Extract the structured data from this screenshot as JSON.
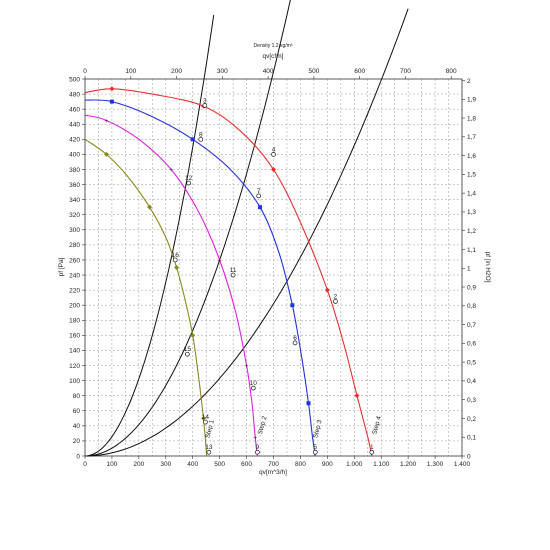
{
  "chart_data": {
    "type": "line",
    "title": "Density 1.2 kg/m³",
    "xlabel": "qv[m^3/h]",
    "x2label": "qv[cfm]",
    "ylabel": "pf [Pa]",
    "y2label": "pf [in H2O]",
    "xlim": [
      0,
      1400
    ],
    "ylim": [
      0,
      500
    ],
    "x2lim": [
      0,
      823.5
    ],
    "y2lim": [
      0,
      2.008
    ],
    "x_ticks": [
      0,
      100,
      200,
      300,
      400,
      500,
      600,
      700,
      800,
      900,
      1000,
      1100,
      1200,
      1300,
      1400
    ],
    "x_tick_labels": [
      "0",
      "100",
      "200",
      "300",
      "400",
      "500",
      "600",
      "700",
      "800",
      "900",
      "1.000",
      "1.100",
      "1.200",
      "1.300",
      "1.400"
    ],
    "x2_ticks": [
      0,
      100,
      200,
      300,
      400,
      500,
      600,
      700,
      800
    ],
    "y_ticks": [
      0,
      20,
      40,
      60,
      80,
      100,
      120,
      140,
      160,
      180,
      200,
      220,
      240,
      260,
      280,
      300,
      320,
      340,
      360,
      380,
      400,
      420,
      440,
      460,
      480,
      500
    ],
    "y2_ticks": [
      0,
      0.1,
      0.2,
      0.3,
      0.4,
      0.5,
      0.6,
      0.7,
      0.8,
      0.9,
      1,
      1.1,
      1.2,
      1.3,
      1.4,
      1.5,
      1.6,
      1.7,
      1.8,
      1.9,
      2
    ],
    "y2_tick_labels": [
      "0",
      "0,1",
      "0,2",
      "0,3",
      "0,4",
      "0,5",
      "0,6",
      "0,7",
      "0,8",
      "0,9",
      "1",
      "1,1",
      "1,2",
      "1,3",
      "1,4",
      "1,5",
      "1,6",
      "1,7",
      "1,8",
      "1,9",
      "2"
    ],
    "grid": true,
    "series": [
      {
        "name": "Step 4",
        "color": "#e83030",
        "marker": "diamond",
        "label_at": [
          1090,
          40
        ],
        "x": [
          0,
          100,
          250,
          440,
          580,
          700,
          800,
          900,
          960,
          1010,
          1050,
          1065
        ],
        "y": [
          482,
          487,
          480,
          464,
          430,
          380,
          310,
          220,
          150,
          80,
          25,
          0
        ]
      },
      {
        "name": "Step 3",
        "color": "#2233dd",
        "marker": "square",
        "label_at": [
          870,
          35
        ],
        "x": [
          0,
          100,
          250,
          400,
          540,
          650,
          720,
          770,
          805,
          830,
          845,
          855
        ],
        "y": [
          472,
          470,
          450,
          420,
          380,
          330,
          270,
          200,
          130,
          70,
          25,
          0
        ]
      },
      {
        "name": "Step 2",
        "color": "#e020e0",
        "marker": "star",
        "label_at": [
          665,
          40
        ],
        "x": [
          0,
          80,
          200,
          320,
          420,
          500,
          560,
          600,
          620,
          632,
          640
        ],
        "y": [
          452,
          445,
          420,
          380,
          325,
          260,
          190,
          120,
          70,
          25,
          0
        ]
      },
      {
        "name": "Step 1",
        "color": "#8a8a20",
        "marker": "diamond",
        "label_at": [
          470,
          35
        ],
        "x": [
          0,
          80,
          160,
          240,
          300,
          340,
          370,
          400,
          420,
          440,
          452
        ],
        "y": [
          420,
          400,
          370,
          330,
          290,
          250,
          210,
          160,
          110,
          50,
          0
        ]
      }
    ],
    "system_curves": [
      {
        "k": 0.00256,
        "x_end": 478
      },
      {
        "k": 0.00104,
        "x_end": 765
      },
      {
        "k": 0.000412,
        "x_end": 1200
      }
    ],
    "operating_points": [
      {
        "label": "3",
        "x": 445,
        "y": 465
      },
      {
        "label": "8",
        "x": 430,
        "y": 420
      },
      {
        "label": "12",
        "x": 385,
        "y": 362
      },
      {
        "label": "16",
        "x": 335,
        "y": 260
      },
      {
        "label": "15",
        "x": 380,
        "y": 135
      },
      {
        "label": "14",
        "x": 447,
        "y": 45
      },
      {
        "label": "13",
        "x": 460,
        "y": 5
      },
      {
        "label": "4",
        "x": 700,
        "y": 400
      },
      {
        "label": "7",
        "x": 645,
        "y": 345
      },
      {
        "label": "11",
        "x": 550,
        "y": 240
      },
      {
        "label": "10",
        "x": 625,
        "y": 90
      },
      {
        "label": "9",
        "x": 640,
        "y": 5
      },
      {
        "label": "2",
        "x": 930,
        "y": 205
      },
      {
        "label": "6",
        "x": 780,
        "y": 150
      },
      {
        "label": "5",
        "x": 855,
        "y": 5
      },
      {
        "label": "1",
        "x": 1065,
        "y": 5
      }
    ]
  }
}
